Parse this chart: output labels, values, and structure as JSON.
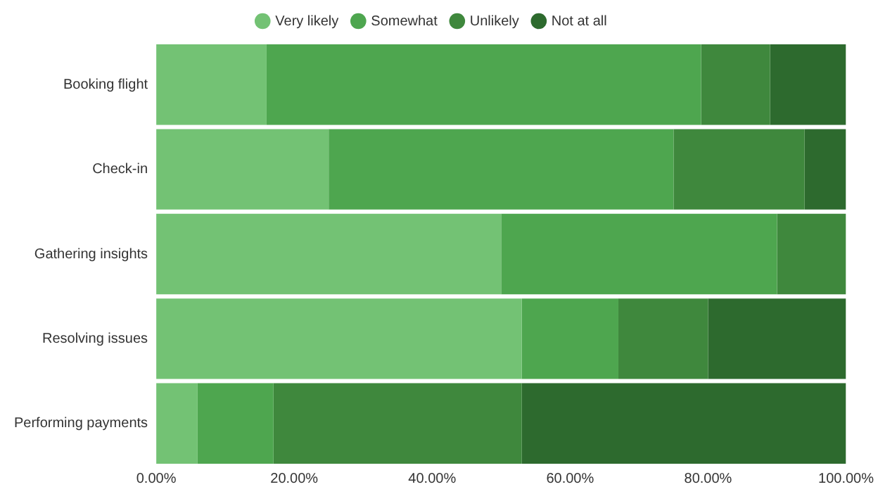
{
  "chart_data": {
    "type": "bar",
    "orientation": "horizontal",
    "stacked": true,
    "legend": "top",
    "grid": false,
    "categories": [
      "Booking flight",
      "Check-in",
      "Gathering insights",
      "Resolving issues",
      "Performing payments"
    ],
    "series": [
      {
        "name": "Very likely",
        "color": "#73c274",
        "values": [
          16,
          25,
          50,
          53,
          6
        ]
      },
      {
        "name": "Somewhat",
        "color": "#4ea64f",
        "values": [
          63,
          50,
          40,
          14,
          11
        ]
      },
      {
        "name": "Unlikely",
        "color": "#3f883d",
        "values": [
          10,
          19,
          10,
          13,
          36
        ]
      },
      {
        "name": "Not at all",
        "color": "#2d6a2e",
        "values": [
          11,
          6,
          0,
          20,
          47
        ]
      }
    ],
    "xlim": [
      0,
      100
    ],
    "xticks": [
      {
        "value": 0,
        "label": "0.00%"
      },
      {
        "value": 20,
        "label": "20.00%"
      },
      {
        "value": 40,
        "label": "40.00%"
      },
      {
        "value": 60,
        "label": "60.00%"
      },
      {
        "value": 80,
        "label": "80.00%"
      },
      {
        "value": 100,
        "label": "100.00%"
      }
    ]
  }
}
